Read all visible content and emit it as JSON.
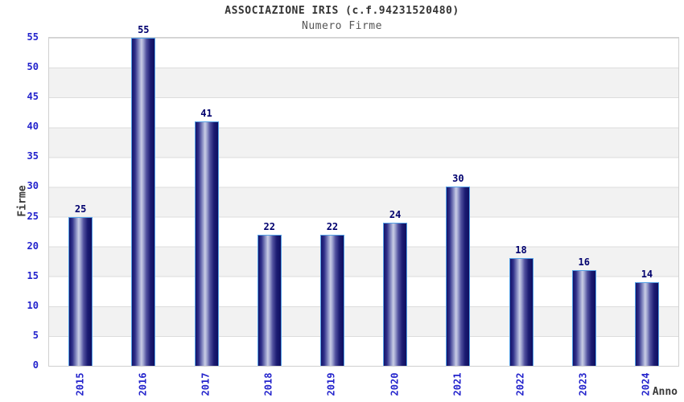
{
  "header": {
    "title": "ASSOCIAZIONE IRIS (c.f.94231520480)",
    "subtitle": "Numero Firme"
  },
  "axes": {
    "x_title": "Anno",
    "y_title": "Firme"
  },
  "chart_data": {
    "type": "bar",
    "title": "ASSOCIAZIONE IRIS (c.f.94231520480)",
    "subtitle": "Numero Firme",
    "xlabel": "Anno",
    "ylabel": "Firme",
    "categories": [
      "2015",
      "2016",
      "2017",
      "2018",
      "2019",
      "2020",
      "2021",
      "2022",
      "2023",
      "2024"
    ],
    "values": [
      25,
      55,
      41,
      22,
      22,
      24,
      30,
      18,
      16,
      14
    ],
    "ylim": [
      0,
      55
    ],
    "ytick_step": 5,
    "grid": "horizontal-bands",
    "legend": false,
    "value_labels": true,
    "colors": {
      "bar_dark": "#0f0f60",
      "bar_highlight": "#c9cde4",
      "bar_border": "#54a0e6",
      "tick_label": "#2323cc",
      "value_label": "#00006e",
      "band_gray": "#f2f2f2",
      "gridline": "#dcdcdc",
      "plot_border": "#d0d0d0",
      "title_text": "#333333",
      "subtitle_text": "#555555",
      "axis_title_text": "#3a3a3a"
    }
  }
}
